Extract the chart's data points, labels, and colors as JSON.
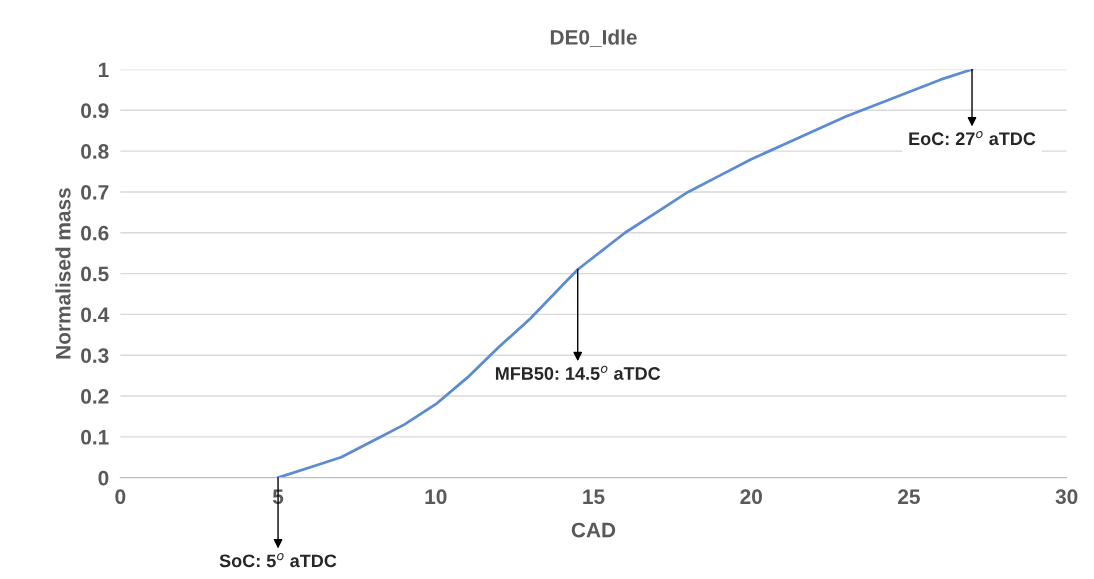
{
  "chart_data": {
    "type": "line",
    "title": "DE0_Idle",
    "xlabel": "CAD",
    "ylabel": "Normalised mass",
    "x": [
      5,
      6,
      7,
      8,
      9,
      10,
      11,
      12,
      13,
      14,
      14.5,
      15,
      16,
      17,
      18,
      19,
      20,
      21,
      22,
      23,
      24,
      25,
      26,
      27
    ],
    "series": [
      {
        "color": "#5b8bd0",
        "values": [
          0,
          0.025,
          0.05,
          0.09,
          0.13,
          0.18,
          0.245,
          0.32,
          0.39,
          0.47,
          0.51,
          0.54,
          0.6,
          0.65,
          0.7,
          0.74,
          0.78,
          0.815,
          0.85,
          0.885,
          0.915,
          0.945,
          0.975,
          1.0
        ]
      }
    ],
    "xlim": [
      0,
      30
    ],
    "xticks": [
      0,
      5,
      10,
      15,
      20,
      25,
      30
    ],
    "ylim": [
      0,
      1
    ],
    "yticks": [
      0,
      0.1,
      0.2,
      0.3,
      0.4,
      0.5,
      0.6,
      0.7,
      0.8,
      0.9,
      1
    ],
    "grid": "y",
    "legend": false,
    "marker": "none",
    "line_style": "solid",
    "annotations": [
      {
        "text": "SoC: 5$^{o}$ aTDC",
        "x": 5,
        "y": 0
      },
      {
        "text": "MFB50: 14.5$^{o}$ aTDC",
        "x": 14.5,
        "y": 0.51
      },
      {
        "text": "EoC: 27$^{o}$ aTDC",
        "x": 27,
        "y": 1
      }
    ]
  }
}
